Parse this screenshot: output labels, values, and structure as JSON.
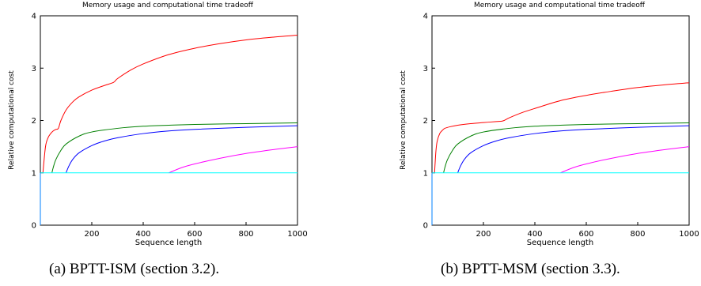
{
  "chart_data": [
    {
      "type": "line",
      "title": "Memory usage and computational time tradeoff",
      "xlabel": "Sequence length",
      "ylabel": "Relative computational cost",
      "xlim": [
        0,
        1000
      ],
      "ylim": [
        0,
        4
      ],
      "xticks": [
        200,
        400,
        600,
        800,
        1000
      ],
      "yticks": [
        0,
        1,
        2,
        3,
        4
      ],
      "grid": false,
      "caption": "(a)  BPTT-ISM (section 3.2).",
      "series": [
        {
          "color": "#ff0000",
          "x": [
            10,
            20,
            30,
            40,
            50,
            60,
            70,
            80,
            100,
            125,
            150,
            200,
            250,
            285,
            300,
            350,
            400,
            500,
            600,
            700,
            800,
            900,
            1000
          ],
          "y": [
            1.0,
            1.5,
            1.67,
            1.75,
            1.8,
            1.83,
            1.85,
            2.0,
            2.2,
            2.35,
            2.45,
            2.58,
            2.67,
            2.73,
            2.8,
            2.96,
            3.08,
            3.26,
            3.38,
            3.47,
            3.54,
            3.59,
            3.63
          ]
        },
        {
          "color": "#008000",
          "x": [
            45,
            50,
            60,
            80,
            100,
            150,
            200,
            300,
            400,
            500,
            600,
            800,
            1000
          ],
          "y": [
            1.0,
            1.1,
            1.25,
            1.43,
            1.55,
            1.7,
            1.78,
            1.85,
            1.89,
            1.91,
            1.925,
            1.94,
            1.955
          ]
        },
        {
          "color": "#0000ff",
          "x": [
            100,
            110,
            125,
            150,
            200,
            250,
            300,
            400,
            500,
            600,
            800,
            1000
          ],
          "y": [
            1.0,
            1.12,
            1.25,
            1.38,
            1.52,
            1.61,
            1.67,
            1.75,
            1.8,
            1.83,
            1.87,
            1.9
          ]
        },
        {
          "color": "#ff00ff",
          "x": [
            500,
            550,
            600,
            700,
            800,
            900,
            1000
          ],
          "y": [
            1.0,
            1.1,
            1.17,
            1.28,
            1.37,
            1.44,
            1.5
          ]
        },
        {
          "color": "#00ffff",
          "x": [
            0,
            1000
          ],
          "y": [
            1.0,
            1.0
          ]
        },
        {
          "color": "#0080ff",
          "x": [
            0,
            0
          ],
          "y": [
            0.0,
            1.0
          ]
        }
      ]
    },
    {
      "type": "line",
      "title": "Memory usage and computational time tradeoff",
      "xlabel": "Sequence length",
      "ylabel": "Relative computational cost",
      "xlim": [
        0,
        1000
      ],
      "ylim": [
        0,
        4
      ],
      "xticks": [
        200,
        400,
        600,
        800,
        1000
      ],
      "yticks": [
        0,
        1,
        2,
        3,
        4
      ],
      "grid": false,
      "caption": "(b)  BPTT-MSM (section 3.3).",
      "series": [
        {
          "color": "#ff0000",
          "x": [
            10,
            15,
            20,
            30,
            40,
            50,
            70,
            100,
            150,
            200,
            250,
            275,
            300,
            350,
            400,
            500,
            600,
            700,
            800,
            900,
            1000
          ],
          "y": [
            1.0,
            1.4,
            1.6,
            1.75,
            1.81,
            1.85,
            1.88,
            1.91,
            1.94,
            1.96,
            1.98,
            1.99,
            2.05,
            2.15,
            2.23,
            2.38,
            2.48,
            2.56,
            2.63,
            2.68,
            2.72
          ]
        },
        {
          "color": "#008000",
          "x": [
            45,
            50,
            60,
            80,
            100,
            150,
            200,
            300,
            400,
            500,
            600,
            800,
            1000
          ],
          "y": [
            1.0,
            1.1,
            1.25,
            1.43,
            1.55,
            1.7,
            1.78,
            1.85,
            1.89,
            1.91,
            1.925,
            1.94,
            1.955
          ]
        },
        {
          "color": "#0000ff",
          "x": [
            100,
            110,
            125,
            150,
            200,
            250,
            300,
            400,
            500,
            600,
            800,
            1000
          ],
          "y": [
            1.0,
            1.12,
            1.25,
            1.38,
            1.52,
            1.61,
            1.67,
            1.75,
            1.8,
            1.83,
            1.87,
            1.9
          ]
        },
        {
          "color": "#ff00ff",
          "x": [
            500,
            550,
            600,
            700,
            800,
            900,
            1000
          ],
          "y": [
            1.0,
            1.1,
            1.17,
            1.28,
            1.37,
            1.44,
            1.5
          ]
        },
        {
          "color": "#00ffff",
          "x": [
            0,
            1000
          ],
          "y": [
            1.0,
            1.0
          ]
        },
        {
          "color": "#0080ff",
          "x": [
            0,
            0
          ],
          "y": [
            0.0,
            1.0
          ]
        }
      ]
    }
  ]
}
